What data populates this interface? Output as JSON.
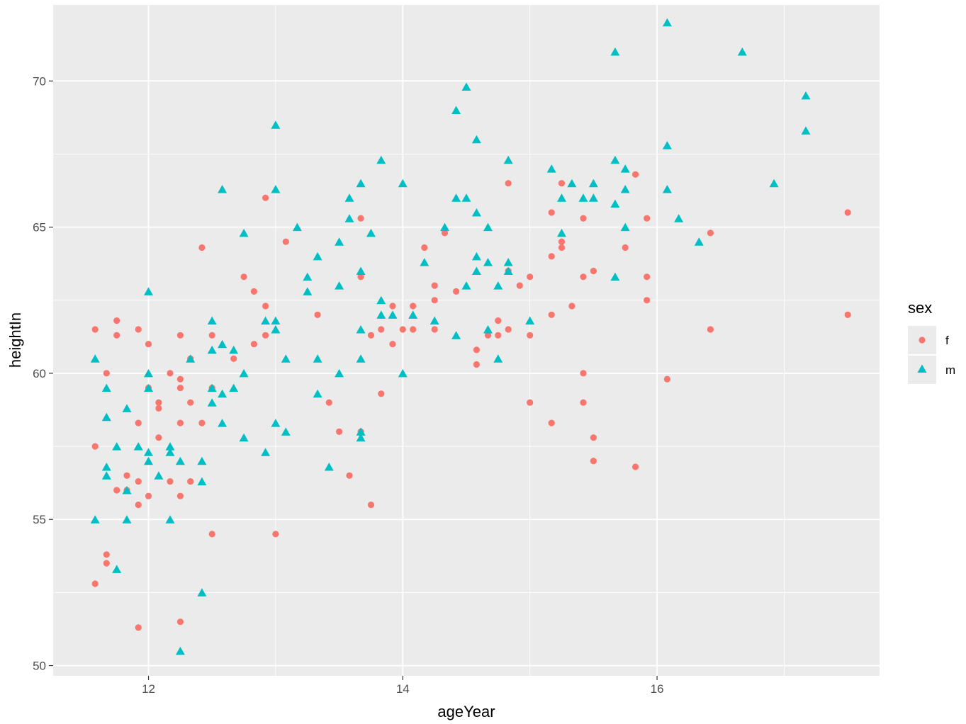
{
  "chart_data": {
    "type": "scatter",
    "xlabel": "ageYear",
    "ylabel": "heightIn",
    "xlim": [
      11.25,
      17.75
    ],
    "ylim": [
      49.65,
      72.6
    ],
    "x_ticks": [
      12,
      14,
      16
    ],
    "x_tick_labels": [
      "12",
      "14",
      "16"
    ],
    "y_ticks": [
      50,
      55,
      60,
      65,
      70
    ],
    "y_tick_labels": [
      "50",
      "55",
      "60",
      "65",
      "70"
    ],
    "x_minor": [
      11.0,
      13.0,
      15.0,
      17.0
    ],
    "y_minor": [
      52.5,
      57.5,
      62.5,
      67.5
    ],
    "grid": true,
    "background": "#ebebeb",
    "legend": {
      "title": "sex",
      "position": "right",
      "entries": [
        {
          "label": "f",
          "shape": "circle",
          "color": "#F8766D"
        },
        {
          "label": "m",
          "shape": "triangle",
          "color": "#00BFC4"
        }
      ]
    },
    "series": [
      {
        "name": "f",
        "shape": "circle",
        "color": "#F8766D",
        "points": [
          [
            11.58,
            61.5
          ],
          [
            11.58,
            57.5
          ],
          [
            11.58,
            52.8
          ],
          [
            11.67,
            60.0
          ],
          [
            11.67,
            53.8
          ],
          [
            11.67,
            53.5
          ],
          [
            11.75,
            61.8
          ],
          [
            11.75,
            61.3
          ],
          [
            11.75,
            56.0
          ],
          [
            11.83,
            56.5
          ],
          [
            11.83,
            56.0
          ],
          [
            11.92,
            61.5
          ],
          [
            11.92,
            58.3
          ],
          [
            11.92,
            56.3
          ],
          [
            11.92,
            55.5
          ],
          [
            11.92,
            51.3
          ],
          [
            12.0,
            61.0
          ],
          [
            12.0,
            59.5
          ],
          [
            12.0,
            55.8
          ],
          [
            12.08,
            59.0
          ],
          [
            12.08,
            58.8
          ],
          [
            12.08,
            57.8
          ],
          [
            12.17,
            60.0
          ],
          [
            12.17,
            56.3
          ],
          [
            12.25,
            61.3
          ],
          [
            12.25,
            59.8
          ],
          [
            12.25,
            59.5
          ],
          [
            12.25,
            58.3
          ],
          [
            12.25,
            55.8
          ],
          [
            12.25,
            51.5
          ],
          [
            12.33,
            60.5
          ],
          [
            12.33,
            59.0
          ],
          [
            12.33,
            56.3
          ],
          [
            12.42,
            64.3
          ],
          [
            12.42,
            58.3
          ],
          [
            12.5,
            61.3
          ],
          [
            12.5,
            59.5
          ],
          [
            12.5,
            54.5
          ],
          [
            12.67,
            60.5
          ],
          [
            12.75,
            63.3
          ],
          [
            12.83,
            62.8
          ],
          [
            12.83,
            61.0
          ],
          [
            12.92,
            66.0
          ],
          [
            12.92,
            62.3
          ],
          [
            12.92,
            61.3
          ],
          [
            13.0,
            54.5
          ],
          [
            13.08,
            64.5
          ],
          [
            13.33,
            62.0
          ],
          [
            13.42,
            59.0
          ],
          [
            13.5,
            58.0
          ],
          [
            13.58,
            56.5
          ],
          [
            13.67,
            65.3
          ],
          [
            13.67,
            63.3
          ],
          [
            13.67,
            58.0
          ],
          [
            13.75,
            61.3
          ],
          [
            13.75,
            55.5
          ],
          [
            13.83,
            61.5
          ],
          [
            13.83,
            59.3
          ],
          [
            13.92,
            62.3
          ],
          [
            13.92,
            61.0
          ],
          [
            14.0,
            61.5
          ],
          [
            14.08,
            62.3
          ],
          [
            14.08,
            61.5
          ],
          [
            14.17,
            64.3
          ],
          [
            14.25,
            63.0
          ],
          [
            14.25,
            62.5
          ],
          [
            14.25,
            61.5
          ],
          [
            14.33,
            64.8
          ],
          [
            14.42,
            62.8
          ],
          [
            14.58,
            60.8
          ],
          [
            14.58,
            60.3
          ],
          [
            14.67,
            61.3
          ],
          [
            14.75,
            61.8
          ],
          [
            14.75,
            61.3
          ],
          [
            14.83,
            66.5
          ],
          [
            14.83,
            63.5
          ],
          [
            14.83,
            61.5
          ],
          [
            14.92,
            63.0
          ],
          [
            15.0,
            63.3
          ],
          [
            15.0,
            61.3
          ],
          [
            15.0,
            59.0
          ],
          [
            15.17,
            65.5
          ],
          [
            15.17,
            64.0
          ],
          [
            15.17,
            62.0
          ],
          [
            15.17,
            58.3
          ],
          [
            15.25,
            66.5
          ],
          [
            15.25,
            64.5
          ],
          [
            15.25,
            64.3
          ],
          [
            15.33,
            62.3
          ],
          [
            15.42,
            65.3
          ],
          [
            15.42,
            63.3
          ],
          [
            15.42,
            60.0
          ],
          [
            15.42,
            59.0
          ],
          [
            15.5,
            63.5
          ],
          [
            15.5,
            57.8
          ],
          [
            15.5,
            57.0
          ],
          [
            15.75,
            64.3
          ],
          [
            15.83,
            66.8
          ],
          [
            15.83,
            56.8
          ],
          [
            15.92,
            65.3
          ],
          [
            15.92,
            63.3
          ],
          [
            15.92,
            62.5
          ],
          [
            16.08,
            59.8
          ],
          [
            16.42,
            64.8
          ],
          [
            16.42,
            61.5
          ],
          [
            17.5,
            65.5
          ],
          [
            17.5,
            62.0
          ]
        ]
      },
      {
        "name": "m",
        "shape": "triangle",
        "color": "#00BFC4",
        "points": [
          [
            11.58,
            60.5
          ],
          [
            11.58,
            55.0
          ],
          [
            11.67,
            59.5
          ],
          [
            11.67,
            58.5
          ],
          [
            11.67,
            56.8
          ],
          [
            11.67,
            56.5
          ],
          [
            11.75,
            57.5
          ],
          [
            11.75,
            53.3
          ],
          [
            11.83,
            58.8
          ],
          [
            11.83,
            56.0
          ],
          [
            11.83,
            55.0
          ],
          [
            11.92,
            57.5
          ],
          [
            12.0,
            62.8
          ],
          [
            12.0,
            60.0
          ],
          [
            12.0,
            59.5
          ],
          [
            12.0,
            57.3
          ],
          [
            12.0,
            57.0
          ],
          [
            12.08,
            56.5
          ],
          [
            12.17,
            57.5
          ],
          [
            12.17,
            57.3
          ],
          [
            12.17,
            55.0
          ],
          [
            12.25,
            57.0
          ],
          [
            12.25,
            50.5
          ],
          [
            12.33,
            60.5
          ],
          [
            12.42,
            57.0
          ],
          [
            12.42,
            56.3
          ],
          [
            12.42,
            52.5
          ],
          [
            12.5,
            61.8
          ],
          [
            12.5,
            60.8
          ],
          [
            12.5,
            59.5
          ],
          [
            12.5,
            59.0
          ],
          [
            12.58,
            66.3
          ],
          [
            12.58,
            61.0
          ],
          [
            12.58,
            59.3
          ],
          [
            12.58,
            58.3
          ],
          [
            12.67,
            60.8
          ],
          [
            12.67,
            59.5
          ],
          [
            12.75,
            64.8
          ],
          [
            12.75,
            60.0
          ],
          [
            12.75,
            57.8
          ],
          [
            12.92,
            61.8
          ],
          [
            12.92,
            57.3
          ],
          [
            13.0,
            68.5
          ],
          [
            13.0,
            66.3
          ],
          [
            13.0,
            61.8
          ],
          [
            13.0,
            61.5
          ],
          [
            13.0,
            58.3
          ],
          [
            13.08,
            60.5
          ],
          [
            13.08,
            58.0
          ],
          [
            13.17,
            65.0
          ],
          [
            13.25,
            63.3
          ],
          [
            13.25,
            62.8
          ],
          [
            13.33,
            64.0
          ],
          [
            13.33,
            60.5
          ],
          [
            13.33,
            59.3
          ],
          [
            13.42,
            56.8
          ],
          [
            13.5,
            64.5
          ],
          [
            13.5,
            63.0
          ],
          [
            13.5,
            60.0
          ],
          [
            13.58,
            66.0
          ],
          [
            13.58,
            65.3
          ],
          [
            13.67,
            66.5
          ],
          [
            13.67,
            63.5
          ],
          [
            13.67,
            61.5
          ],
          [
            13.67,
            60.5
          ],
          [
            13.67,
            58.0
          ],
          [
            13.67,
            57.8
          ],
          [
            13.75,
            64.8
          ],
          [
            13.83,
            67.3
          ],
          [
            13.83,
            62.5
          ],
          [
            13.83,
            62.0
          ],
          [
            13.92,
            62.0
          ],
          [
            14.0,
            66.5
          ],
          [
            14.0,
            60.0
          ],
          [
            14.08,
            62.0
          ],
          [
            14.17,
            63.8
          ],
          [
            14.25,
            61.8
          ],
          [
            14.33,
            65.0
          ],
          [
            14.42,
            69.0
          ],
          [
            14.42,
            66.0
          ],
          [
            14.42,
            61.3
          ],
          [
            14.5,
            69.8
          ],
          [
            14.5,
            66.0
          ],
          [
            14.5,
            63.0
          ],
          [
            14.58,
            68.0
          ],
          [
            14.58,
            65.5
          ],
          [
            14.58,
            64.0
          ],
          [
            14.58,
            63.5
          ],
          [
            14.67,
            65.0
          ],
          [
            14.67,
            63.8
          ],
          [
            14.67,
            61.5
          ],
          [
            14.75,
            63.0
          ],
          [
            14.75,
            60.5
          ],
          [
            14.83,
            67.3
          ],
          [
            14.83,
            63.8
          ],
          [
            14.83,
            63.5
          ],
          [
            15.0,
            61.8
          ],
          [
            15.17,
            67.0
          ],
          [
            15.25,
            66.0
          ],
          [
            15.25,
            64.8
          ],
          [
            15.33,
            66.5
          ],
          [
            15.42,
            66.0
          ],
          [
            15.5,
            66.5
          ],
          [
            15.5,
            66.0
          ],
          [
            15.67,
            71.0
          ],
          [
            15.67,
            67.3
          ],
          [
            15.67,
            65.8
          ],
          [
            15.67,
            63.3
          ],
          [
            15.75,
            67.0
          ],
          [
            15.75,
            66.3
          ],
          [
            15.75,
            65.0
          ],
          [
            16.08,
            72.0
          ],
          [
            16.08,
            67.8
          ],
          [
            16.08,
            66.3
          ],
          [
            16.17,
            65.3
          ],
          [
            16.33,
            64.5
          ],
          [
            16.67,
            71.0
          ],
          [
            16.92,
            66.5
          ],
          [
            17.17,
            69.5
          ],
          [
            17.17,
            68.3
          ]
        ]
      }
    ]
  }
}
